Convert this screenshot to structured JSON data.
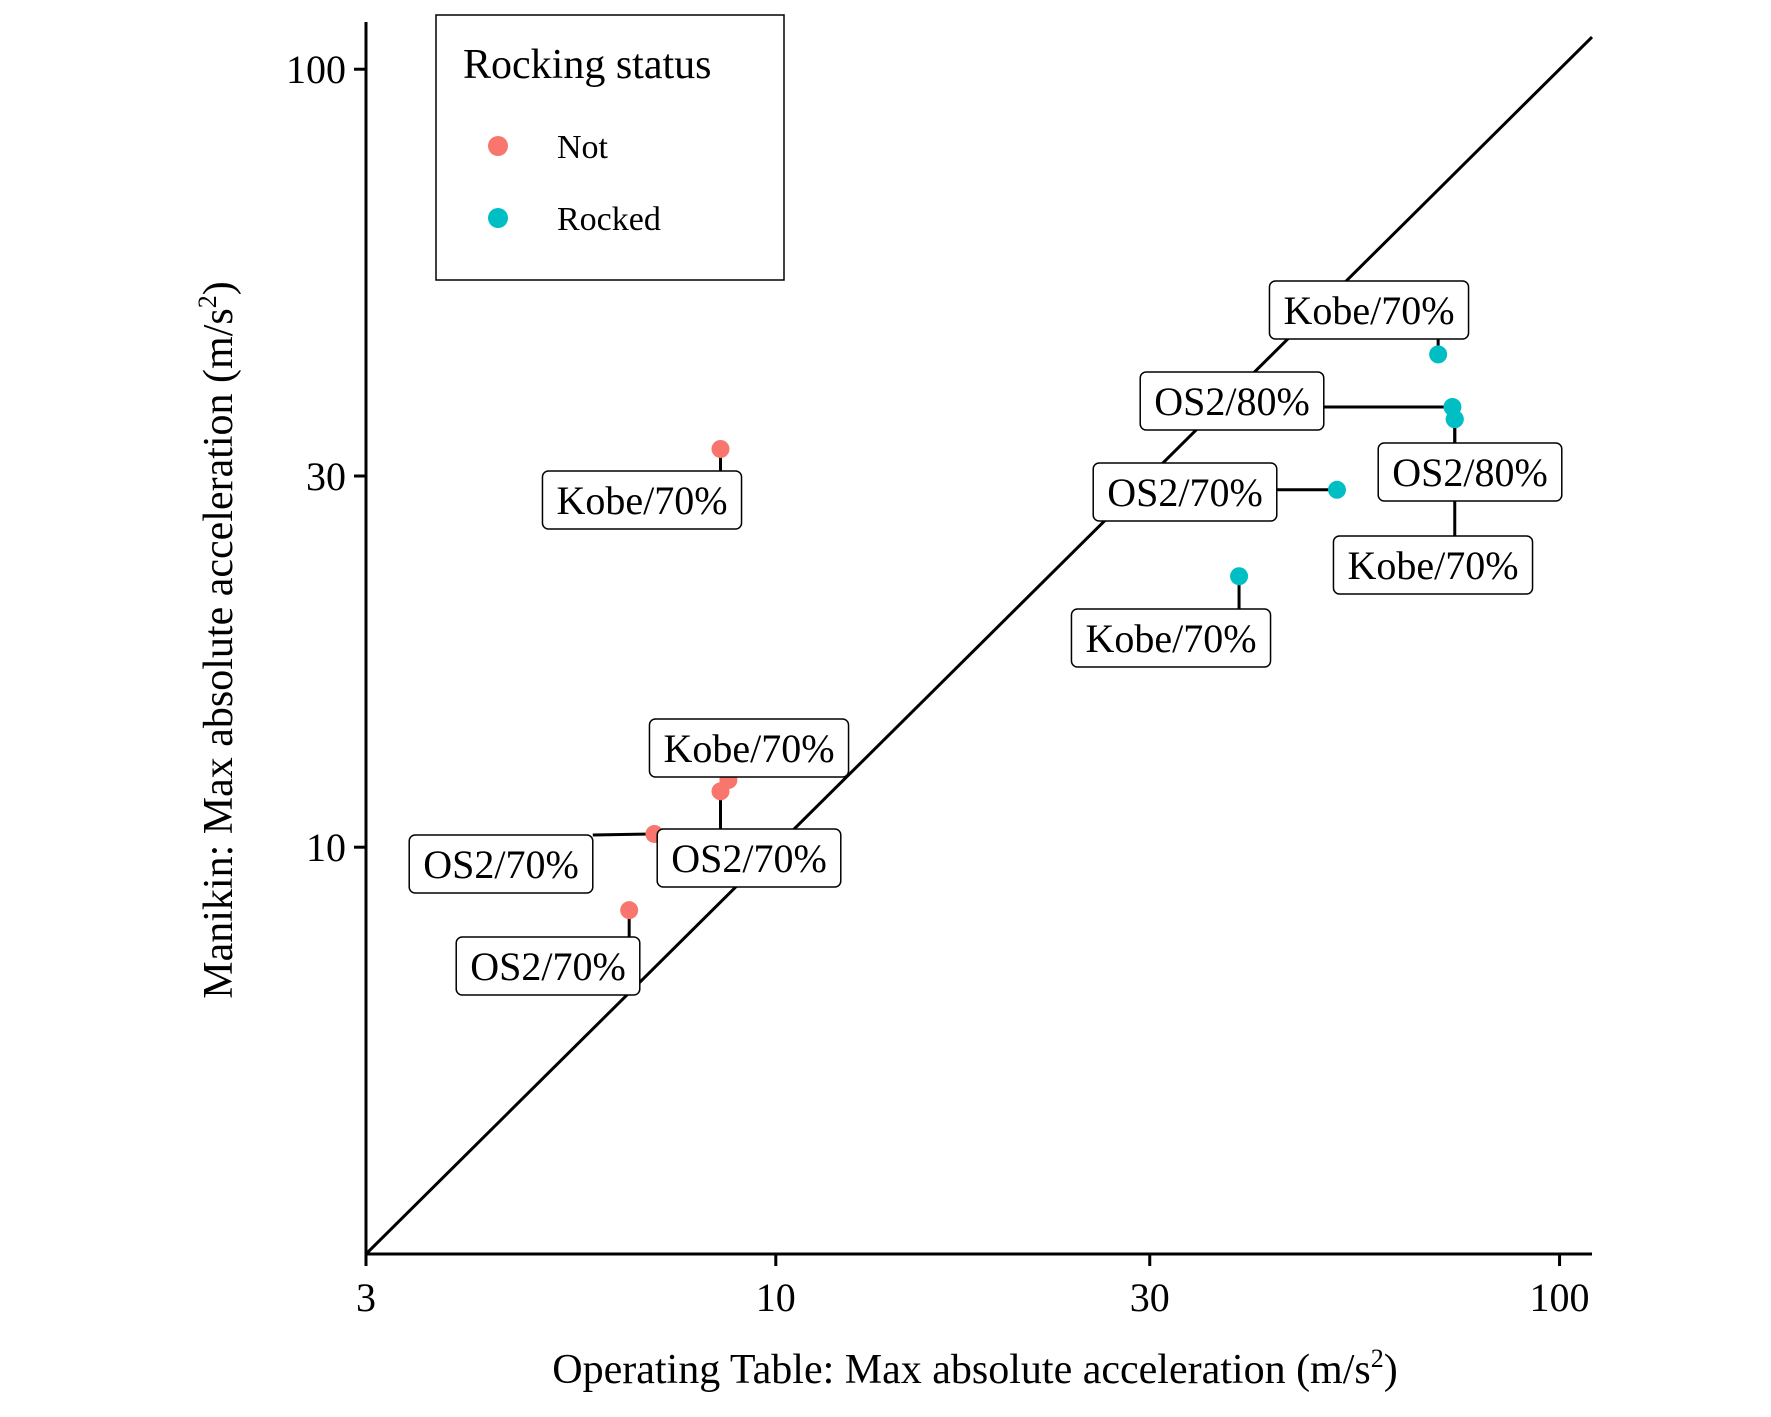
{
  "chart_data": {
    "type": "scatter",
    "title": "",
    "xlabel": "Operating Table: Max absolute acceleration (m/s",
    "xlabel_sup": "2",
    "xlabel_end": ")",
    "ylabel": "Manikin: Max absolute acceleration (m/s",
    "ylabel_sup": "2",
    "ylabel_end": ")",
    "x_scale": "log",
    "y_scale": "log",
    "xlim": [
      3,
      110
    ],
    "ylim": [
      3,
      115
    ],
    "x_ticks": [
      3,
      10,
      30,
      100
    ],
    "x_tick_labels": [
      "3",
      "10",
      "30",
      "100"
    ],
    "y_ticks": [
      10,
      30,
      100
    ],
    "y_tick_labels": [
      "10",
      "30",
      "100"
    ],
    "grid": false,
    "reference_line": "y = x",
    "legend": {
      "title": "Rocking status",
      "placement": "top-left",
      "entries": [
        {
          "name": "Not",
          "color": "#F8766D"
        },
        {
          "name": "Rocked",
          "color": "#00BFC4"
        }
      ]
    },
    "points": [
      {
        "x": 8.5,
        "y": 32.5,
        "status": "Not",
        "label": "Kobe/70%"
      },
      {
        "x": 8.7,
        "y": 12.2,
        "status": "Not",
        "label": "Kobe/70%"
      },
      {
        "x": 8.5,
        "y": 11.8,
        "status": "Not",
        "label": "OS2/70%"
      },
      {
        "x": 7.0,
        "y": 10.4,
        "status": "Not",
        "label": "OS2/70%"
      },
      {
        "x": 6.5,
        "y": 8.3,
        "status": "Not",
        "label": "OS2/70%"
      },
      {
        "x": 70.0,
        "y": 43.0,
        "status": "Rocked",
        "label": "Kobe/70%"
      },
      {
        "x": 73.0,
        "y": 36.8,
        "status": "Rocked",
        "label": "OS2/80%"
      },
      {
        "x": 73.5,
        "y": 35.5,
        "status": "Rocked",
        "label": "OS2/80%"
      },
      {
        "x": 52.0,
        "y": 28.8,
        "status": "Rocked",
        "label": "OS2/70%"
      },
      {
        "x": 39.0,
        "y": 22.3,
        "status": "Rocked",
        "label": "Kobe/70%"
      },
      {
        "x": 73.5,
        "y": 35.5,
        "status": "Rocked",
        "label": "Kobe/70%"
      }
    ]
  }
}
